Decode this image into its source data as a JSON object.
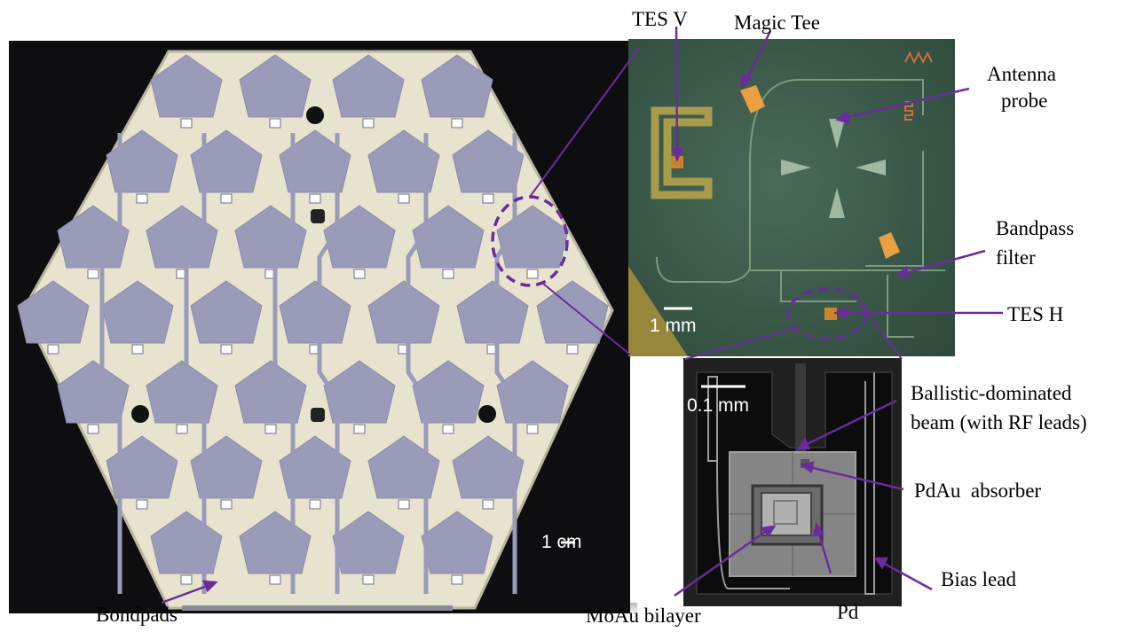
{
  "figure": {
    "panels": {
      "wafer": {
        "scale_text": "1 cm"
      },
      "pixel": {
        "scale_text": "1 mm"
      },
      "tes": {
        "scale_text": "0.1 mm"
      }
    },
    "labels": {
      "tes_v": "TES V",
      "magic_tee": "Magic Tee",
      "antenna_probe_line1": "Antenna",
      "antenna_probe_line2": "probe",
      "bandpass_line1": "Bandpass",
      "bandpass_line2": "filter",
      "tes_h": "TES H",
      "ballistic_line1": "Ballistic-dominated",
      "ballistic_line2": "beam (with RF leads)",
      "pdau_absorber": "PdAu  absorber",
      "bias_lead": "Bias lead",
      "bondpads": "Bondpads",
      "moau_bilayer": "MoAu bilayer",
      "pd": "Pd"
    },
    "colors": {
      "annotation": "#6a2c9c",
      "wafer_bg": "#0e0e10",
      "wafer_substrate": "#e8e3cf",
      "wafer_feature": "#9a9bb8",
      "pixel_bg": "#3e5b4a",
      "tes_bg": "#202020"
    }
  }
}
